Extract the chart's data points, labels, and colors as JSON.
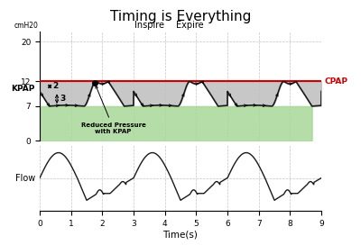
{
  "title": "Timing is Everything",
  "title_fontsize": 11,
  "cpap_level": 12,
  "kpap_low": 7,
  "xlim": [
    0,
    9
  ],
  "pressure_ylim": [
    0,
    22
  ],
  "pressure_yticks": [
    0,
    7,
    12,
    20
  ],
  "pressure_ytick_labels": [
    "0",
    "7",
    "12",
    "20"
  ],
  "xticks": [
    0,
    1,
    2,
    3,
    4,
    5,
    6,
    7,
    8,
    9
  ],
  "xlabel": "Time(s)",
  "ylabel_pressure": "cmH20",
  "ylabel_flow": "Flow",
  "cpap_label": "CPAP",
  "kpap_label": "KPAP",
  "inspire_label": "Inspire",
  "expire_label": "Expire",
  "annotation_label": "Reduced Pressure\nwith KPAP",
  "cpap_color": "#cc0000",
  "kpap_color": "#1a1a1a",
  "flow_color": "#1a1a1a",
  "grey_fill_color": "#bebebe",
  "green_fill_color": "#a8d898",
  "grid_color": "#aaaaaa",
  "background_color": "#ffffff",
  "period": 3.0
}
